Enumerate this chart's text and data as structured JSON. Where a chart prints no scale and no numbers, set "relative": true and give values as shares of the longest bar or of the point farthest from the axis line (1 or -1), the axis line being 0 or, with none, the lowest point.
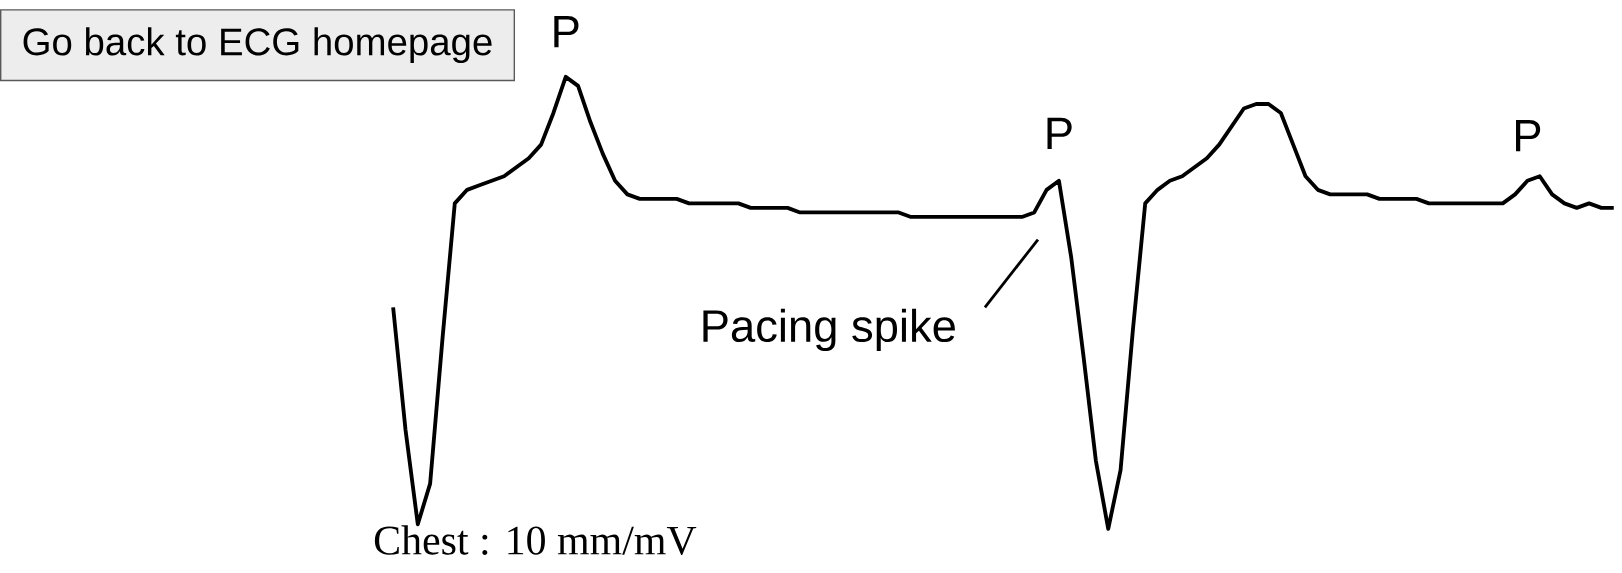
{
  "chart_data": {
    "type": "line",
    "relative": true,
    "color": "#000000",
    "marker": "none",
    "line_style": "solid",
    "categories": [
      null,
      null,
      null,
      null,
      null,
      null,
      null,
      null,
      null,
      null,
      null,
      null,
      null,
      null,
      null,
      null,
      null,
      null,
      null,
      null,
      null,
      null,
      null,
      null,
      null,
      null,
      null,
      null,
      null,
      null,
      null,
      null,
      null,
      null,
      null,
      null,
      null,
      null,
      null,
      null,
      null,
      null,
      null,
      null,
      null,
      null,
      null,
      null,
      null,
      null,
      null,
      null,
      null,
      null,
      null,
      null,
      null,
      null,
      null,
      null,
      null,
      null,
      null,
      null,
      null,
      null,
      null,
      null,
      null,
      null,
      null,
      null,
      null,
      null,
      null,
      null,
      null,
      null,
      null,
      null,
      null,
      null,
      null,
      null,
      null,
      null,
      null,
      null,
      null,
      null,
      null,
      null,
      null,
      null,
      null,
      null,
      null,
      null,
      null,
      null
    ],
    "values": [
      0.49,
      0.22,
      0.01,
      0.1,
      0.42,
      0.72,
      0.75,
      0.76,
      0.77,
      0.78,
      0.8,
      0.82,
      0.85,
      0.92,
      1,
      0.98,
      0.9,
      0.83,
      0.77,
      0.74,
      0.73,
      0.73,
      0.73,
      0.73,
      0.72,
      0.72,
      0.72,
      0.72,
      0.72,
      0.71,
      0.71,
      0.71,
      0.71,
      0.7,
      0.7,
      0.7,
      0.7,
      0.7,
      0.7,
      0.7,
      0.7,
      0.7,
      0.69,
      0.69,
      0.69,
      0.69,
      0.69,
      0.69,
      0.69,
      0.69,
      0.69,
      0.69,
      0.7,
      0.75,
      0.77,
      0.6,
      0.38,
      0.15,
      0,
      0.13,
      0.44,
      0.72,
      0.75,
      0.77,
      0.78,
      0.8,
      0.82,
      0.85,
      0.89,
      0.93,
      0.94,
      0.94,
      0.92,
      0.85,
      0.78,
      0.75,
      0.74,
      0.74,
      0.74,
      0.74,
      0.73,
      0.73,
      0.73,
      0.73,
      0.72,
      0.72,
      0.72,
      0.72,
      0.72,
      0.72,
      0.72,
      0.74,
      0.77,
      0.78,
      0.74,
      0.72,
      0.71,
      0.72,
      0.71,
      0.71
    ],
    "annotations": [
      "P",
      "P",
      "P",
      "Pacing spike",
      "Chest : 10 mm/mV",
      "Go back to ECG homepage"
    ]
  }
}
